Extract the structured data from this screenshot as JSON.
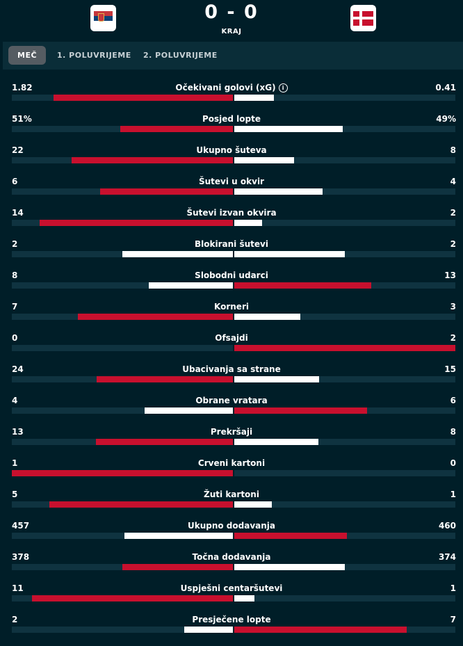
{
  "match": {
    "score": "0 - 0",
    "status": "KRAJ",
    "home_flag": "serbia-flag",
    "away_flag": "denmark-flag"
  },
  "tabs": [
    "MEČ",
    "1. POLUVRIJEME",
    "2. POLUVRIJEME"
  ],
  "colors": {
    "winner": "#c8102e",
    "loser": "#ffffff",
    "track": "#0f3340",
    "background": "#001e28"
  },
  "stats": [
    {
      "label": "Očekivani golovi (xG)",
      "home": "1.82",
      "away": "0.41",
      "home_frac": 0.81,
      "away_frac": 0.18,
      "home_color": "red",
      "away_color": "white",
      "info": true
    },
    {
      "label": "Posjed lopte",
      "home": "51%",
      "away": "49%",
      "home_frac": 0.51,
      "away_frac": 0.49,
      "home_color": "red",
      "away_color": "white"
    },
    {
      "label": "Ukupno šuteva",
      "home": "22",
      "away": "8",
      "home_frac": 0.73,
      "away_frac": 0.27,
      "home_color": "red",
      "away_color": "white"
    },
    {
      "label": "Šutevi u okvir",
      "home": "6",
      "away": "4",
      "home_frac": 0.6,
      "away_frac": 0.4,
      "home_color": "red",
      "away_color": "white"
    },
    {
      "label": "Šutevi izvan okvira",
      "home": "14",
      "away": "2",
      "home_frac": 0.875,
      "away_frac": 0.125,
      "home_color": "red",
      "away_color": "white"
    },
    {
      "label": "Blokirani šutevi",
      "home": "2",
      "away": "2",
      "home_frac": 0.5,
      "away_frac": 0.5,
      "home_color": "white",
      "away_color": "white"
    },
    {
      "label": "Slobodni udarci",
      "home": "8",
      "away": "13",
      "home_frac": 0.38,
      "away_frac": 0.62,
      "home_color": "white",
      "away_color": "red"
    },
    {
      "label": "Korneri",
      "home": "7",
      "away": "3",
      "home_frac": 0.7,
      "away_frac": 0.3,
      "home_color": "red",
      "away_color": "white"
    },
    {
      "label": "Ofsajdi",
      "home": "0",
      "away": "2",
      "home_frac": 0.0,
      "away_frac": 1.0,
      "home_color": "white",
      "away_color": "red"
    },
    {
      "label": "Ubacivanja sa strane",
      "home": "24",
      "away": "15",
      "home_frac": 0.615,
      "away_frac": 0.385,
      "home_color": "red",
      "away_color": "white"
    },
    {
      "label": "Obrane vratara",
      "home": "4",
      "away": "6",
      "home_frac": 0.4,
      "away_frac": 0.6,
      "home_color": "white",
      "away_color": "red"
    },
    {
      "label": "Prekršaji",
      "home": "13",
      "away": "8",
      "home_frac": 0.62,
      "away_frac": 0.38,
      "home_color": "red",
      "away_color": "white"
    },
    {
      "label": "Crveni kartoni",
      "home": "1",
      "away": "0",
      "home_frac": 1.0,
      "away_frac": 0.0,
      "home_color": "red",
      "away_color": "white"
    },
    {
      "label": "Žuti kartoni",
      "home": "5",
      "away": "1",
      "home_frac": 0.83,
      "away_frac": 0.17,
      "home_color": "red",
      "away_color": "white"
    },
    {
      "label": "Ukupno dodavanja",
      "home": "457",
      "away": "460",
      "home_frac": 0.49,
      "away_frac": 0.51,
      "home_color": "white",
      "away_color": "red"
    },
    {
      "label": "Točna dodavanja",
      "home": "378",
      "away": "374",
      "home_frac": 0.5,
      "away_frac": 0.5,
      "home_color": "red",
      "away_color": "white"
    },
    {
      "label": "Uspješni centaršutevi",
      "home": "11",
      "away": "1",
      "home_frac": 0.91,
      "away_frac": 0.09,
      "home_color": "red",
      "away_color": "white"
    },
    {
      "label": "Presječene lopte",
      "home": "2",
      "away": "7",
      "home_frac": 0.22,
      "away_frac": 0.78,
      "home_color": "white",
      "away_color": "red"
    }
  ]
}
